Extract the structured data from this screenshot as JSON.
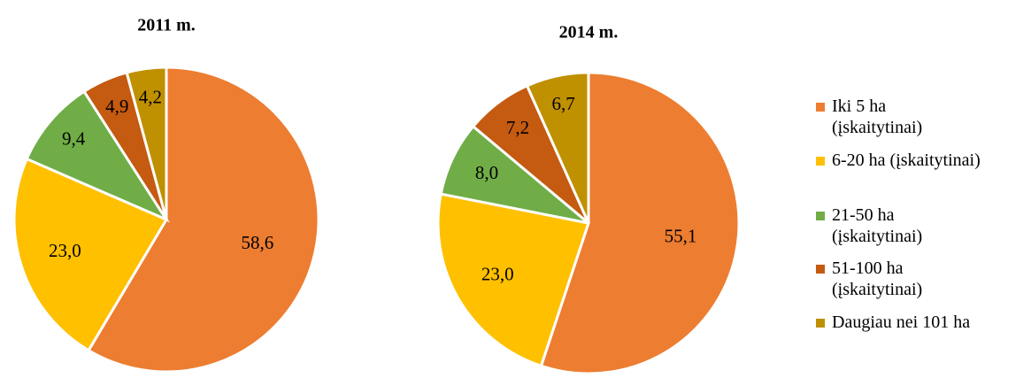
{
  "chart_data": [
    {
      "type": "pie",
      "title": "2011 m.",
      "categories": [
        "Iki 5 ha (įskaitytinai)",
        "6-20 ha (įskaitytinai)",
        "21-50 ha (įskaitytinai)",
        "51-100 ha (įskaitytinai)",
        "Daugiau nei 101 ha"
      ],
      "colors": [
        "#ED7D31",
        "#FFC000",
        "#70AD47",
        "#C55A11",
        "#BF9000"
      ],
      "values": [
        58.6,
        23.0,
        9.4,
        4.9,
        4.2
      ],
      "value_labels": [
        "58,6",
        "23,0",
        "9,4",
        "4,9",
        "4,2"
      ]
    },
    {
      "type": "pie",
      "title": "2014 m.",
      "values": [
        55.1,
        23.0,
        8.0,
        7.2,
        6.7
      ],
      "value_labels": [
        "55,1",
        "23,0",
        "8,0",
        "7,2",
        "6,7"
      ]
    }
  ]
}
